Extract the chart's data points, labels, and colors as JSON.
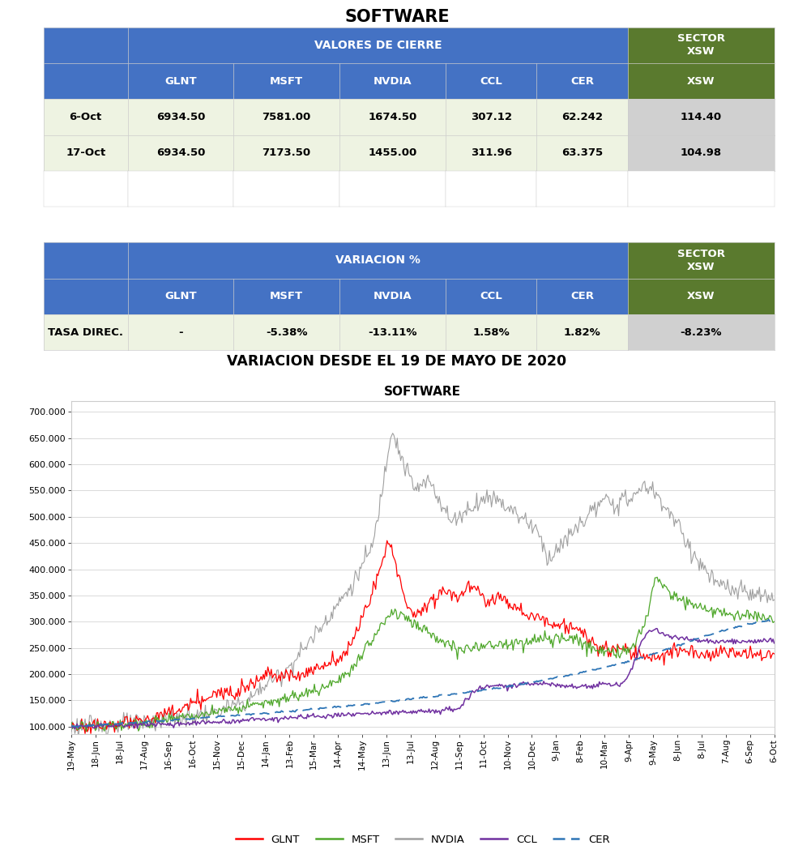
{
  "title_top": "SOFTWARE",
  "table1_header_main": "VALORES DE CIERRE",
  "table1_cols": [
    "GLNT",
    "MSFT",
    "NVDIA",
    "CCL",
    "CER"
  ],
  "table1_sector_header": "SECTOR\nXSW",
  "table1_rows": [
    [
      "6-Oct",
      "6934.50",
      "7581.00",
      "1674.50",
      "307.12",
      "62.242",
      "114.40"
    ],
    [
      "17-Oct",
      "6934.50",
      "7173.50",
      "1455.00",
      "311.96",
      "63.375",
      "104.98"
    ]
  ],
  "table2_header_main": "VARIACION %",
  "table2_sector_header": "SECTOR\nXSW",
  "table2_rows": [
    [
      "TASA DIREC.",
      "-",
      "-5.38%",
      "-13.11%",
      "1.58%",
      "1.82%",
      "-8.23%"
    ]
  ],
  "subtitle": "VARIACION DESDE EL 19 DE MAYO DE 2020",
  "chart_title": "SOFTWARE",
  "header_bg": "#4472C4",
  "header_fg": "#FFFFFF",
  "sector_bg": "#5A7A2E",
  "data_bg": "#EEF3E2",
  "sector_data_bg": "#D0D0D0",
  "legend_labels": [
    "GLNT",
    "MSFT",
    "NVDIA",
    "CCL",
    "CER"
  ],
  "legend_colors": [
    "#FF0000",
    "#4EA72A",
    "#A0A0A0",
    "#7030A0",
    "#2E75B6"
  ],
  "yticks": [
    100000,
    150000,
    200000,
    250000,
    300000,
    350000,
    400000,
    450000,
    500000,
    550000,
    600000,
    650000,
    700000
  ],
  "xtick_labels": [
    "19-May",
    "18-Jun",
    "18-Jul",
    "17-Aug",
    "16-Sep",
    "16-Oct",
    "15-Nov",
    "15-Dec",
    "14-Jan",
    "13-Feb",
    "15-Mar",
    "14-Apr",
    "14-May",
    "13-Jun",
    "13-Jul",
    "12-Aug",
    "11-Sep",
    "11-Oct",
    "10-Nov",
    "10-Dec",
    "9-Jan",
    "8-Feb",
    "10-Mar",
    "9-Apr",
    "9-May",
    "8-Jun",
    "8-Jul",
    "7-Aug",
    "6-Sep",
    "6-Oct"
  ]
}
